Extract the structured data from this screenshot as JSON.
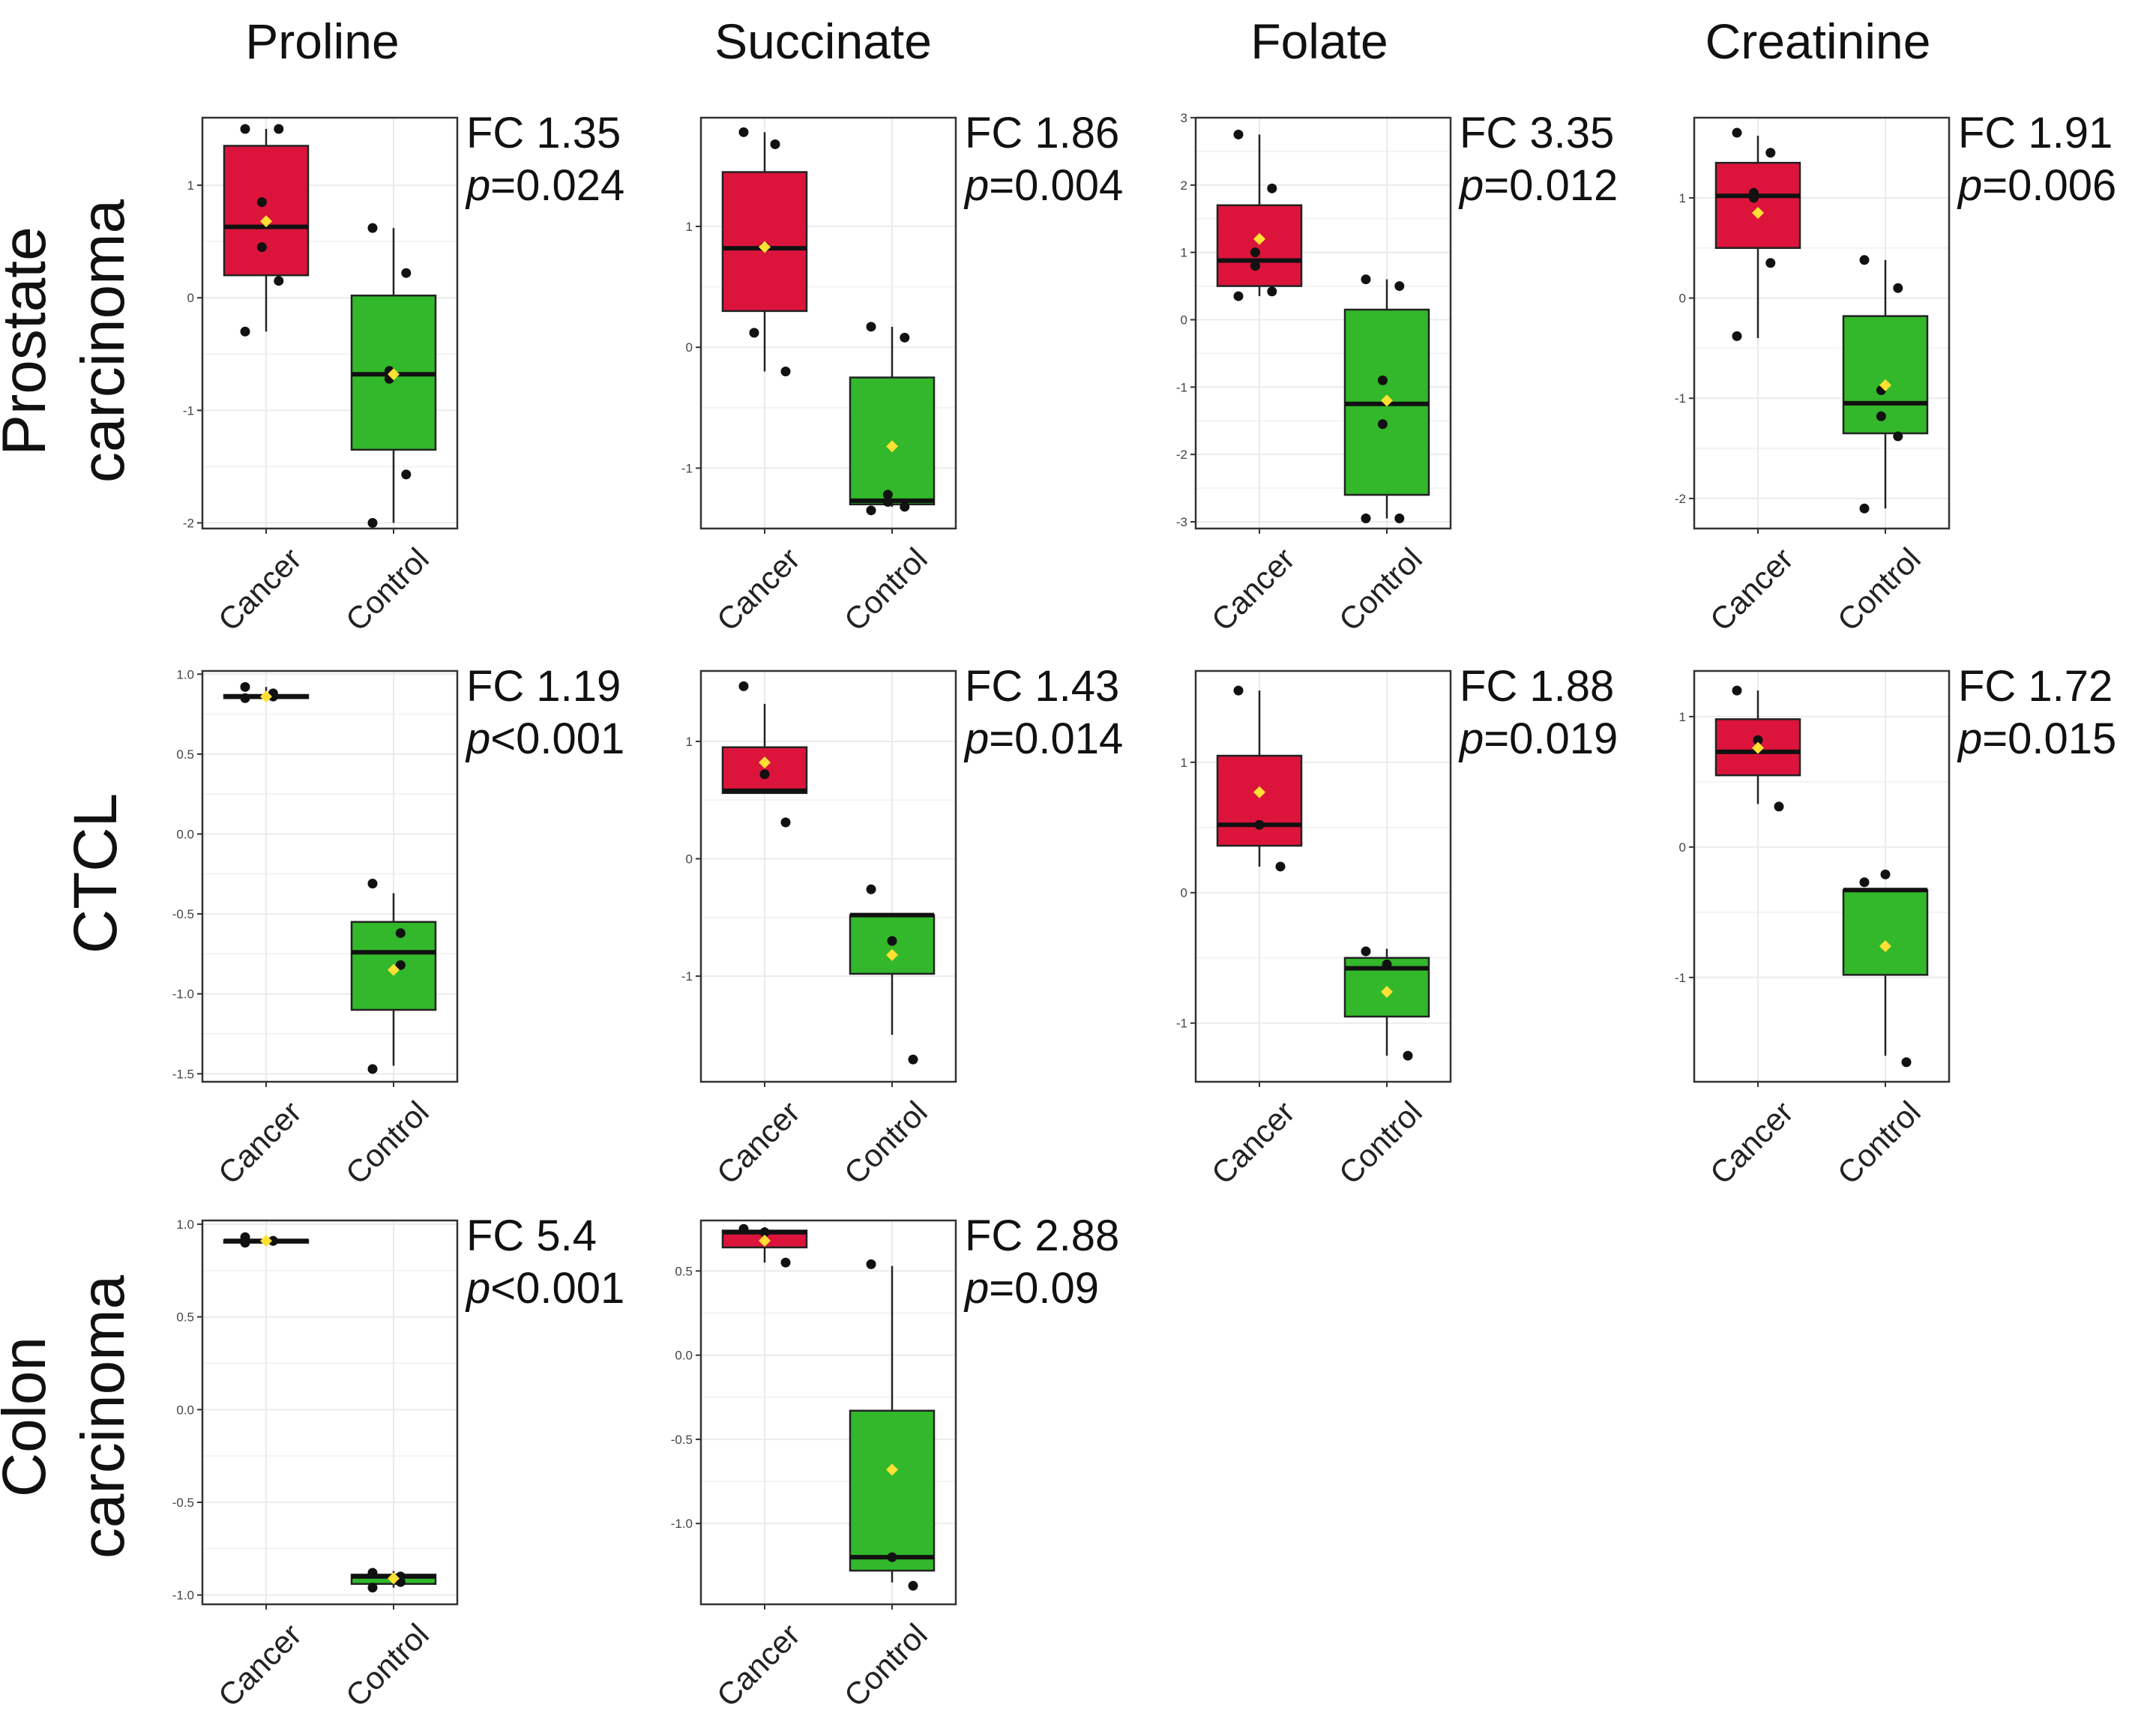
{
  "chart_data": {
    "type": "box",
    "layout": "3x4 grid of box plots",
    "column_titles": [
      "Proline",
      "Succinate",
      "Folate",
      "Creatinine"
    ],
    "row_labels": [
      [
        "Prostate",
        "carcinoma"
      ],
      [
        "CTCL"
      ],
      [
        "Colon",
        "carcinoma"
      ]
    ],
    "categories": [
      "Cancer",
      "Control"
    ],
    "colors": {
      "Cancer": "#dc143c",
      "Control": "#32b82a",
      "mean_marker": "#ffe033",
      "points": "#111111"
    },
    "panels": [
      {
        "row": 0,
        "col": 0,
        "metabolite": "Proline",
        "fc": "FC 1.35",
        "p_letter": "p",
        "p_rest": "=0.024",
        "ylim": [
          -2.05,
          1.6
        ],
        "yticks": [
          -2,
          -1,
          0,
          1
        ],
        "ytick_labels": [
          "-2",
          "-1",
          "0",
          "1"
        ],
        "groups": [
          {
            "name": "Cancer",
            "q1": 0.2,
            "median": 0.63,
            "q3": 1.35,
            "lower": -0.3,
            "upper": 1.5,
            "mean": 0.68,
            "points": [
              1.5,
              1.5,
              0.85,
              0.45,
              0.15,
              -0.3
            ]
          },
          {
            "name": "Control",
            "q1": -1.35,
            "median": -0.68,
            "q3": 0.02,
            "lower": -2.0,
            "upper": 0.62,
            "mean": -0.68,
            "points": [
              0.62,
              0.22,
              -0.65,
              -0.72,
              -1.57,
              -2.0
            ]
          }
        ]
      },
      {
        "row": 0,
        "col": 1,
        "metabolite": "Succinate",
        "fc": "FC 1.86",
        "p_letter": "p",
        "p_rest": "=0.004",
        "ylim": [
          -1.5,
          1.9
        ],
        "yticks": [
          -1,
          0,
          1
        ],
        "ytick_labels": [
          "-1",
          "0",
          "1"
        ],
        "groups": [
          {
            "name": "Cancer",
            "q1": 0.3,
            "median": 0.82,
            "q3": 1.45,
            "lower": -0.2,
            "upper": 1.78,
            "mean": 0.83,
            "points": [
              1.78,
              1.68,
              0.83,
              0.12,
              -0.2
            ]
          },
          {
            "name": "Control",
            "q1": -1.3,
            "median": -1.27,
            "q3": -0.25,
            "lower": -1.32,
            "upper": 0.17,
            "mean": -0.82,
            "points": [
              0.17,
              0.08,
              -1.22,
              -1.28,
              -1.32,
              -1.35
            ]
          }
        ]
      },
      {
        "row": 0,
        "col": 2,
        "metabolite": "Folate",
        "fc": "FC 3.35",
        "p_letter": "p",
        "p_rest": "=0.012",
        "ylim": [
          -3.1,
          3.0
        ],
        "yticks": [
          -3,
          -2,
          -1,
          0,
          1,
          2,
          3
        ],
        "ytick_labels": [
          "-3",
          "-2",
          "-1",
          "0",
          "1",
          "2",
          "3"
        ],
        "groups": [
          {
            "name": "Cancer",
            "q1": 0.5,
            "median": 0.88,
            "q3": 1.7,
            "lower": 0.35,
            "upper": 2.75,
            "mean": 1.2,
            "points": [
              2.75,
              1.95,
              1.0,
              0.8,
              0.42,
              0.35
            ]
          },
          {
            "name": "Control",
            "q1": -2.6,
            "median": -1.25,
            "q3": 0.15,
            "lower": -2.95,
            "upper": 0.6,
            "mean": -1.2,
            "points": [
              0.6,
              0.5,
              -0.9,
              -1.55,
              -2.95,
              -2.95
            ]
          }
        ]
      },
      {
        "row": 0,
        "col": 3,
        "metabolite": "Creatinine",
        "fc": "FC 1.91",
        "p_letter": "p",
        "p_rest": "=0.006",
        "ylim": [
          -2.3,
          1.8
        ],
        "yticks": [
          -2,
          -1,
          0,
          1
        ],
        "ytick_labels": [
          "-2",
          "-1",
          "0",
          "1"
        ],
        "groups": [
          {
            "name": "Cancer",
            "q1": 0.5,
            "median": 1.02,
            "q3": 1.35,
            "lower": -0.4,
            "upper": 1.62,
            "mean": 0.85,
            "points": [
              1.65,
              1.45,
              1.05,
              1.0,
              0.35,
              -0.38
            ]
          },
          {
            "name": "Control",
            "q1": -1.35,
            "median": -1.05,
            "q3": -0.18,
            "lower": -2.1,
            "upper": 0.38,
            "mean": -0.87,
            "points": [
              0.38,
              0.1,
              -0.92,
              -1.18,
              -1.38,
              -2.1
            ]
          }
        ]
      },
      {
        "row": 1,
        "col": 0,
        "metabolite": "Proline",
        "fc": "FC 1.19",
        "p_letter": "p",
        "p_rest": "<0.001",
        "ylim": [
          -1.55,
          1.02
        ],
        "yticks": [
          -1.5,
          -1.0,
          -0.5,
          0.0,
          0.5,
          1.0
        ],
        "ytick_labels": [
          "-1.5",
          "-1.0",
          "-0.5",
          "0.0",
          "0.5",
          "1.0"
        ],
        "groups": [
          {
            "name": "Cancer",
            "q1": 0.85,
            "median": 0.86,
            "q3": 0.87,
            "lower": 0.85,
            "upper": 0.92,
            "mean": 0.86,
            "points": [
              0.92,
              0.88,
              0.86,
              0.85
            ]
          },
          {
            "name": "Control",
            "q1": -1.1,
            "median": -0.74,
            "q3": -0.55,
            "lower": -1.45,
            "upper": -0.37,
            "mean": -0.85,
            "points": [
              -0.31,
              -0.62,
              -0.82,
              -1.47
            ]
          }
        ]
      },
      {
        "row": 1,
        "col": 1,
        "metabolite": "Succinate",
        "fc": "FC 1.43",
        "p_letter": "p",
        "p_rest": "=0.014",
        "ylim": [
          -1.9,
          1.6
        ],
        "yticks": [
          -1,
          0,
          1
        ],
        "ytick_labels": [
          "-1",
          "0",
          "1"
        ],
        "groups": [
          {
            "name": "Cancer",
            "q1": 0.56,
            "median": 0.58,
            "q3": 0.95,
            "lower": 0.56,
            "upper": 1.32,
            "mean": 0.82,
            "points": [
              1.47,
              0.72,
              0.31
            ]
          },
          {
            "name": "Control",
            "q1": -0.98,
            "median": -0.48,
            "q3": -0.48,
            "lower": -1.5,
            "upper": -0.48,
            "mean": -0.82,
            "points": [
              -0.26,
              -0.7,
              -1.71
            ]
          }
        ]
      },
      {
        "row": 1,
        "col": 2,
        "metabolite": "Folate",
        "fc": "FC 1.88",
        "p_letter": "p",
        "p_rest": "=0.019",
        "ylim": [
          -1.45,
          1.7
        ],
        "yticks": [
          -1,
          0,
          1
        ],
        "ytick_labels": [
          "-1",
          "0",
          "1"
        ],
        "groups": [
          {
            "name": "Cancer",
            "q1": 0.36,
            "median": 0.52,
            "q3": 1.05,
            "lower": 0.2,
            "upper": 1.55,
            "mean": 0.77,
            "points": [
              1.55,
              0.52,
              0.2
            ]
          },
          {
            "name": "Control",
            "q1": -0.95,
            "median": -0.58,
            "q3": -0.5,
            "lower": -1.25,
            "upper": -0.43,
            "mean": -0.76,
            "points": [
              -0.45,
              -0.55,
              -1.25
            ]
          }
        ]
      },
      {
        "row": 1,
        "col": 3,
        "metabolite": "Creatinine",
        "fc": "FC 1.72",
        "p_letter": "p",
        "p_rest": "=0.015",
        "ylim": [
          -1.8,
          1.35
        ],
        "yticks": [
          -1,
          0,
          1
        ],
        "ytick_labels": [
          "-1",
          "0",
          "1"
        ],
        "groups": [
          {
            "name": "Cancer",
            "q1": 0.55,
            "median": 0.73,
            "q3": 0.98,
            "lower": 0.33,
            "upper": 1.2,
            "mean": 0.76,
            "points": [
              1.2,
              0.82,
              0.31
            ]
          },
          {
            "name": "Control",
            "q1": -0.98,
            "median": -0.33,
            "q3": -0.33,
            "lower": -1.6,
            "upper": -0.33,
            "mean": -0.76,
            "points": [
              -0.27,
              -0.21,
              -1.65
            ]
          }
        ]
      },
      {
        "row": 2,
        "col": 0,
        "metabolite": "Proline",
        "fc": "FC 5.4",
        "p_letter": "p",
        "p_rest": "<0.001",
        "ylim": [
          -1.05,
          1.02
        ],
        "yticks": [
          -1.0,
          -0.5,
          0.0,
          0.5,
          1.0
        ],
        "ytick_labels": [
          "-1.0",
          "-0.5",
          "0.0",
          "0.5",
          "1.0"
        ],
        "groups": [
          {
            "name": "Cancer",
            "q1": 0.9,
            "median": 0.91,
            "q3": 0.915,
            "lower": 0.9,
            "upper": 0.93,
            "mean": 0.91,
            "points": [
              0.93,
              0.91,
              0.91,
              0.9
            ]
          },
          {
            "name": "Control",
            "q1": -0.94,
            "median": -0.9,
            "q3": -0.89,
            "lower": -0.96,
            "upper": -0.87,
            "mean": -0.91,
            "points": [
              -0.88,
              -0.9,
              -0.93,
              -0.96
            ]
          }
        ]
      },
      {
        "row": 2,
        "col": 1,
        "metabolite": "Succinate",
        "fc": "FC 2.88",
        "p_letter": "p",
        "p_rest": "=0.09",
        "ylim": [
          -1.48,
          0.8
        ],
        "yticks": [
          -1.0,
          -0.5,
          0.0,
          0.5
        ],
        "ytick_labels": [
          "-1.0",
          "-0.5",
          "0.0",
          "0.5"
        ],
        "groups": [
          {
            "name": "Cancer",
            "q1": 0.64,
            "median": 0.73,
            "q3": 0.74,
            "lower": 0.55,
            "upper": 0.76,
            "mean": 0.68,
            "points": [
              0.75,
              0.73,
              0.55
            ]
          },
          {
            "name": "Control",
            "q1": -1.28,
            "median": -1.2,
            "q3": -0.33,
            "lower": -1.35,
            "upper": 0.53,
            "mean": -0.68,
            "points": [
              0.54,
              -1.2,
              -1.37
            ]
          }
        ]
      }
    ]
  }
}
